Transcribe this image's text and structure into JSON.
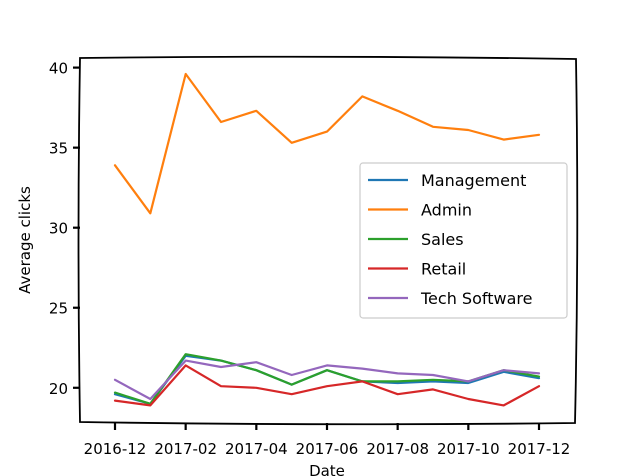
{
  "chart_data": {
    "type": "line",
    "xlabel": "Date",
    "ylabel": "Average clicks",
    "x": [
      "2016-12",
      "2017-01",
      "2017-02",
      "2017-03",
      "2017-04",
      "2017-05",
      "2017-06",
      "2017-07",
      "2017-08",
      "2017-09",
      "2017-10",
      "2017-11",
      "2017-12"
    ],
    "xticks": [
      "2016-12",
      "2017-02",
      "2017-04",
      "2017-06",
      "2017-08",
      "2017-10",
      "2017-12"
    ],
    "yticks": [
      20,
      25,
      30,
      35,
      40
    ],
    "ylim": [
      17.8,
      40.6
    ],
    "legend_position": "center-right",
    "grid": false,
    "series": [
      {
        "name": "Management",
        "color": "#1f77b4",
        "values": [
          19.6,
          19.0,
          22.0,
          21.7,
          21.1,
          20.2,
          21.1,
          20.4,
          20.3,
          20.4,
          20.3,
          21.0,
          20.6
        ]
      },
      {
        "name": "Admin",
        "color": "#ff7f0e",
        "values": [
          33.9,
          30.9,
          39.6,
          36.6,
          37.3,
          35.3,
          36.0,
          38.2,
          37.3,
          36.3,
          36.1,
          35.5,
          35.8
        ]
      },
      {
        "name": "Sales",
        "color": "#2ca02c",
        "values": [
          19.7,
          19.0,
          22.1,
          21.7,
          21.1,
          20.2,
          21.1,
          20.4,
          20.4,
          20.5,
          20.4,
          21.1,
          20.7
        ]
      },
      {
        "name": "Retail",
        "color": "#d62728",
        "values": [
          19.2,
          18.9,
          21.4,
          20.1,
          20.0,
          19.6,
          20.1,
          20.4,
          19.6,
          19.9,
          19.3,
          18.9,
          20.1
        ]
      },
      {
        "name": "Tech Software",
        "color": "#9467bd",
        "values": [
          20.5,
          19.3,
          21.7,
          21.3,
          21.6,
          20.8,
          21.4,
          21.2,
          20.9,
          20.8,
          20.4,
          21.1,
          20.9
        ]
      }
    ]
  }
}
